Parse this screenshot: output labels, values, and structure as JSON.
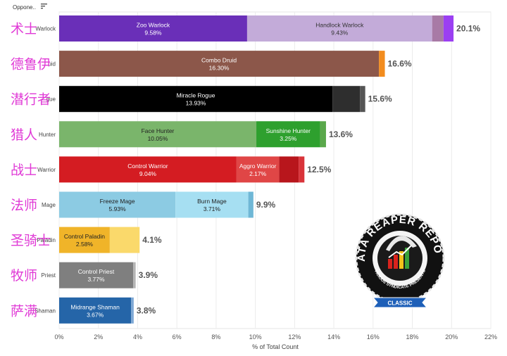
{
  "header": {
    "column_label": "Oppone..",
    "sort_icon": "sort-icon"
  },
  "chart_data": {
    "type": "bar",
    "orientation": "horizontal",
    "stacked": true,
    "xlabel": "% of Total Count",
    "xlim": [
      0,
      22
    ],
    "x_ticks": [
      "0%",
      "2%",
      "4%",
      "6%",
      "8%",
      "10%",
      "12%",
      "14%",
      "16%",
      "18%",
      "20%",
      "22%"
    ],
    "grid": "vertical",
    "rows": [
      {
        "class": "Warlock",
        "class_visible": "Warlock",
        "chinese": "术士",
        "total": 20.1,
        "total_label": "20.1%",
        "segments": [
          {
            "name": "Zoo Warlock",
            "value": 9.58,
            "value_label": "9.58%",
            "color": "#6a2fb8",
            "text_color": "#ffffff"
          },
          {
            "name": "Handlock Warlock",
            "value": 9.43,
            "value_label": "9.43%",
            "color": "#c3abd9",
            "text_color": "#333333"
          },
          {
            "name": "",
            "value": 0.58,
            "value_label": "",
            "color": "#a87aa6",
            "text_color": "#ffffff"
          },
          {
            "name": "",
            "value": 0.51,
            "value_label": "",
            "color": "#9b3ff2",
            "text_color": "#ffffff"
          }
        ]
      },
      {
        "class": "Druid",
        "class_visible": "uid",
        "chinese": "德鲁伊",
        "total": 16.6,
        "total_label": "16.6%",
        "segments": [
          {
            "name": "Combo Druid",
            "value": 16.3,
            "value_label": "16.30%",
            "color": "#8c574a",
            "text_color": "#ffffff"
          },
          {
            "name": "",
            "value": 0.3,
            "value_label": "",
            "color": "#f28c1e",
            "text_color": "#ffffff"
          }
        ]
      },
      {
        "class": "Rogue",
        "class_visible": "gue",
        "chinese": "潜行者",
        "total": 15.6,
        "total_label": "15.6%",
        "segments": [
          {
            "name": "Miracle Rogue",
            "value": 13.93,
            "value_label": "13.93%",
            "color": "#000000",
            "text_color": "#ffffff"
          },
          {
            "name": "",
            "value": 1.4,
            "value_label": "",
            "color": "#2e2e2e",
            "text_color": "#ffffff"
          },
          {
            "name": "",
            "value": 0.27,
            "value_label": "",
            "color": "#555555",
            "text_color": "#ffffff"
          }
        ]
      },
      {
        "class": "Hunter",
        "class_visible": "Hunter",
        "chinese": "猎人",
        "total": 13.6,
        "total_label": "13.6%",
        "segments": [
          {
            "name": "Face Hunter",
            "value": 10.05,
            "value_label": "10.05%",
            "color": "#7ab56b",
            "text_color": "#222222"
          },
          {
            "name": "Sunshine Hunter",
            "value": 3.25,
            "value_label": "3.25%",
            "color": "#2ea02e",
            "text_color": "#ffffff"
          },
          {
            "name": "",
            "value": 0.3,
            "value_label": "",
            "color": "#5aa84b",
            "text_color": "#ffffff"
          }
        ]
      },
      {
        "class": "Warrior",
        "class_visible": "Warrior",
        "chinese": "战士",
        "total": 12.5,
        "total_label": "12.5%",
        "segments": [
          {
            "name": "Control Warrior",
            "value": 9.04,
            "value_label": "9.04%",
            "color": "#d41c22",
            "text_color": "#ffffff"
          },
          {
            "name": "Aggro Warrior",
            "value": 2.17,
            "value_label": "2.17%",
            "color": "#e04646",
            "text_color": "#ffffff"
          },
          {
            "name": "",
            "value": 1.0,
            "value_label": "",
            "color": "#b8161c",
            "text_color": "#ffffff"
          },
          {
            "name": "",
            "value": 0.29,
            "value_label": "",
            "color": "#d9343a",
            "text_color": "#ffffff"
          }
        ]
      },
      {
        "class": "Mage",
        "class_visible": "Mage",
        "chinese": "法师",
        "total": 9.9,
        "total_label": "9.9%",
        "segments": [
          {
            "name": "Freeze Mage",
            "value": 5.93,
            "value_label": "5.93%",
            "color": "#8ccbe3",
            "text_color": "#222222"
          },
          {
            "name": "Burn Mage",
            "value": 3.71,
            "value_label": "3.71%",
            "color": "#a6dff2",
            "text_color": "#222222"
          },
          {
            "name": "",
            "value": 0.26,
            "value_label": "",
            "color": "#6fb7d6",
            "text_color": "#ffffff"
          }
        ]
      },
      {
        "class": "Paladin",
        "class_visible": "Paladin",
        "chinese": "圣骑士",
        "total": 4.1,
        "total_label": "4.1%",
        "segments": [
          {
            "name": "Control Paladin",
            "value": 2.58,
            "value_label": "2.58%",
            "color": "#f0b429",
            "text_color": "#222222"
          },
          {
            "name": "",
            "value": 1.52,
            "value_label": "",
            "color": "#fad96b",
            "text_color": "#222222"
          }
        ]
      },
      {
        "class": "Priest",
        "class_visible": "Priest",
        "chinese": "牧师",
        "total": 3.9,
        "total_label": "3.9%",
        "segments": [
          {
            "name": "Control Priest",
            "value": 3.77,
            "value_label": "3.77%",
            "color": "#7f7f7f",
            "text_color": "#ffffff"
          },
          {
            "name": "",
            "value": 0.13,
            "value_label": "",
            "color": "#b5b5b5",
            "text_color": "#ffffff"
          }
        ]
      },
      {
        "class": "Shaman",
        "class_visible": "Shaman",
        "chinese": "萨满",
        "total": 3.8,
        "total_label": "3.8%",
        "segments": [
          {
            "name": "Midrange Shaman",
            "value": 3.67,
            "value_label": "3.67%",
            "color": "#2565a8",
            "text_color": "#ffffff"
          },
          {
            "name": "",
            "value": 0.13,
            "value_label": "",
            "color": "#7fa9d6",
            "text_color": "#ffffff"
          }
        ]
      }
    ]
  },
  "logo": {
    "title": "DATA REAPER REPORT",
    "subtitle": "VICIOUS SYNDICATE PRESENTS",
    "ribbon": "CLASSIC",
    "colors": {
      "ring": "#111111",
      "ribbon": "#1d5fb8",
      "bar_red": "#d9231d",
      "bar_yellow": "#f2c21a",
      "bar_green": "#3aa23a"
    }
  }
}
